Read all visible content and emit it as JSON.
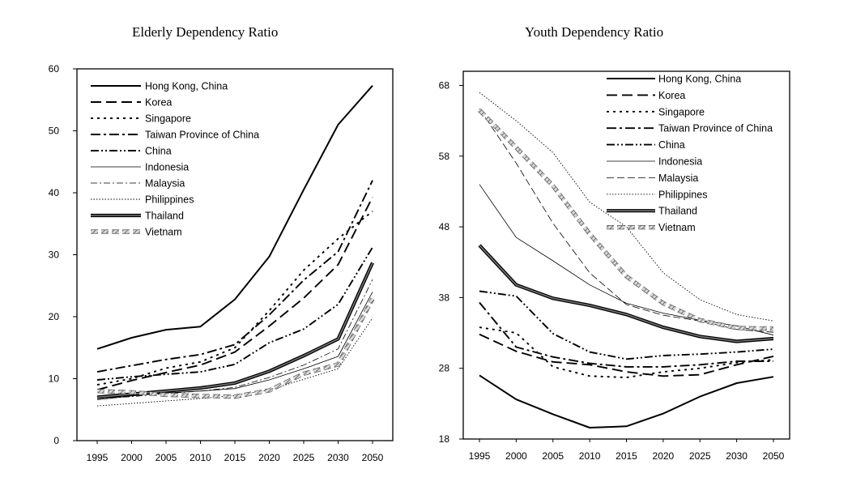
{
  "chart_data": [
    {
      "type": "line",
      "title": "Elderly Dependency Ratio",
      "categories": [
        "1995",
        "2000",
        "2005",
        "2010",
        "2015",
        "2020",
        "2025",
        "2030",
        "2050"
      ],
      "ylim": [
        0,
        60
      ],
      "yticks": [
        "0",
        "10",
        "20",
        "30",
        "40",
        "50",
        "60"
      ],
      "legend_position": "top-left",
      "series": [
        {
          "name": "Hong Kong, China",
          "style": "thick-solid",
          "values": [
            14.8,
            16.6,
            17.9,
            18.4,
            22.8,
            29.7,
            40.5,
            51.0,
            57.3
          ]
        },
        {
          "name": "Korea",
          "style": "long-dash",
          "values": [
            8.2,
            9.7,
            11.0,
            12.2,
            14.3,
            18.5,
            23.0,
            28.4,
            39.3
          ]
        },
        {
          "name": "Singapore",
          "style": "dotted",
          "values": [
            9.0,
            10.0,
            11.7,
            12.7,
            15.0,
            21.0,
            27.5,
            32.6,
            37.0
          ]
        },
        {
          "name": "Taiwan Province of China",
          "style": "dash-dot",
          "values": [
            11.1,
            12.1,
            13.1,
            13.9,
            15.5,
            20.3,
            25.9,
            30.5,
            42.0
          ]
        },
        {
          "name": "China",
          "style": "dash-dot-dot",
          "values": [
            9.8,
            10.3,
            10.7,
            11.1,
            12.3,
            15.8,
            18.0,
            22.0,
            31.2
          ]
        },
        {
          "name": "Indonesia",
          "style": "thin-solid",
          "values": [
            6.6,
            7.2,
            7.7,
            8.0,
            8.4,
            9.8,
            11.6,
            13.6,
            24.0
          ]
        },
        {
          "name": "Malaysia",
          "style": "thin-dash-dot",
          "values": [
            6.8,
            7.1,
            7.6,
            8.0,
            8.6,
            10.2,
            12.2,
            14.8,
            26.0
          ]
        },
        {
          "name": "Philippines",
          "style": "thin-dotted",
          "values": [
            5.6,
            6.0,
            6.4,
            6.8,
            7.3,
            8.2,
            9.9,
            11.6,
            19.8
          ]
        },
        {
          "name": "Thailand",
          "style": "thick-gray",
          "values": [
            7.0,
            7.5,
            8.0,
            8.5,
            9.3,
            11.2,
            13.7,
            16.4,
            28.7
          ]
        },
        {
          "name": "Vietnam",
          "style": "hatched",
          "values": [
            8.0,
            7.8,
            7.4,
            7.2,
            7.1,
            8.1,
            10.8,
            12.3,
            22.9
          ]
        }
      ]
    },
    {
      "type": "line",
      "title": "Youth Dependency Ratio",
      "categories": [
        "1995",
        "2000",
        "2005",
        "2010",
        "2015",
        "2020",
        "2025",
        "2030",
        "2050"
      ],
      "ylim": [
        18,
        70
      ],
      "yticks": [
        "18",
        "28",
        "38",
        "48",
        "58",
        "68"
      ],
      "legend_position": "top-right",
      "series": [
        {
          "name": "Hong Kong, China",
          "style": "thick-solid",
          "values": [
            27.0,
            23.6,
            21.5,
            19.6,
            19.8,
            21.6,
            24.0,
            25.9,
            26.8
          ]
        },
        {
          "name": "Korea",
          "style": "long-dash",
          "values": [
            32.8,
            30.4,
            28.9,
            28.5,
            27.5,
            26.9,
            27.1,
            28.5,
            29.7
          ]
        },
        {
          "name": "Singapore",
          "style": "dotted",
          "values": [
            33.8,
            33.0,
            28.2,
            26.9,
            26.7,
            27.5,
            28.0,
            28.8,
            29.2
          ]
        },
        {
          "name": "Taiwan Province of China",
          "style": "dash-dot",
          "values": [
            37.3,
            31.0,
            29.6,
            28.7,
            28.2,
            28.2,
            28.5,
            29.0,
            29.0
          ]
        },
        {
          "name": "China",
          "style": "dash-dot-dot",
          "values": [
            38.9,
            38.2,
            32.9,
            30.3,
            29.3,
            29.8,
            30.0,
            30.3,
            30.7
          ]
        },
        {
          "name": "Indonesia",
          "style": "thin-solid",
          "values": [
            54.0,
            46.5,
            43.2,
            39.8,
            37.2,
            35.8,
            34.8,
            34.0,
            32.7
          ]
        },
        {
          "name": "Malaysia",
          "style": "thin-dash",
          "values": [
            64.7,
            57.0,
            48.5,
            41.5,
            37.0,
            35.5,
            34.7,
            33.5,
            33.1
          ]
        },
        {
          "name": "Philippines",
          "style": "thin-dotted",
          "values": [
            67.0,
            63.0,
            58.5,
            51.5,
            48.0,
            41.5,
            37.7,
            35.6,
            34.7
          ]
        },
        {
          "name": "Thailand",
          "style": "thick-gray",
          "values": [
            45.4,
            39.8,
            37.9,
            36.9,
            35.6,
            33.8,
            32.5,
            31.8,
            32.2
          ]
        },
        {
          "name": "Vietnam",
          "style": "hatched",
          "values": [
            64.5,
            59.2,
            53.8,
            47.0,
            41.0,
            37.2,
            34.8,
            33.7,
            33.6
          ]
        }
      ]
    }
  ]
}
